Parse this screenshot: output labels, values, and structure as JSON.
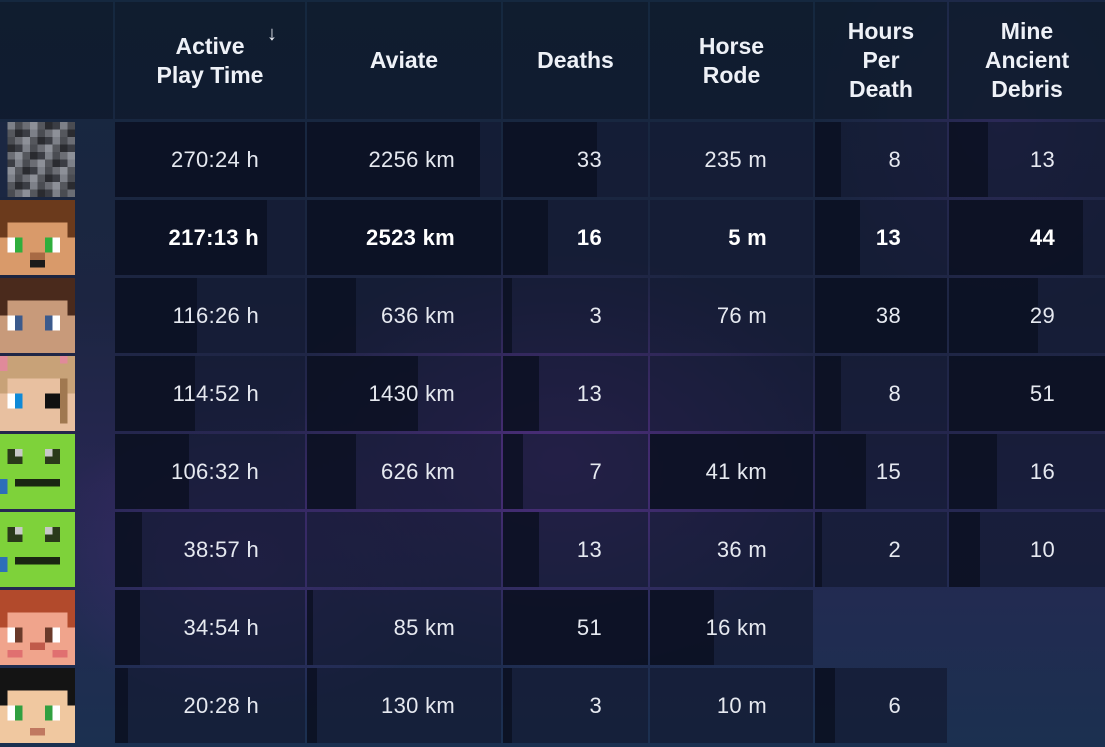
{
  "columns": [
    {
      "key": "play_time",
      "label": "Active\nPlay Time",
      "sorted": true,
      "sort_icon": "arrow-down-icon",
      "sort_glyph": "↓"
    },
    {
      "key": "aviate",
      "label": "Aviate"
    },
    {
      "key": "deaths",
      "label": "Deaths"
    },
    {
      "key": "horse",
      "label": "Horse\nRode"
    },
    {
      "key": "hpd",
      "label": "Hours\nPer\nDeath"
    },
    {
      "key": "debris",
      "label": "Mine\nAncient\nDebris"
    }
  ],
  "rows": [
    {
      "avatar": "player-head-gray-pixelated-icon",
      "bold": false,
      "play_time": "270:24 h",
      "aviate": "2256 km",
      "deaths": "33",
      "horse": "235 m",
      "hpd": "8",
      "debris": "13",
      "fill": {
        "play_time": 1.0,
        "aviate": 0.89,
        "deaths": 0.65,
        "horse": 0.0,
        "hpd": 0.2,
        "debris": 0.25
      }
    },
    {
      "avatar": "player-head-brown-hair-green-eyes-icon",
      "bold": true,
      "play_time": "217:13 h",
      "aviate": "2523 km",
      "deaths": "16",
      "horse": "5 m",
      "hpd": "13",
      "debris": "44",
      "fill": {
        "play_time": 0.8,
        "aviate": 1.0,
        "deaths": 0.31,
        "horse": 0.0,
        "hpd": 0.34,
        "debris": 0.86
      }
    },
    {
      "avatar": "player-head-dark-hair-blue-eyes-icon",
      "bold": false,
      "play_time": "116:26 h",
      "aviate": "636 km",
      "deaths": "3",
      "horse": "76 m",
      "hpd": "38",
      "debris": "29",
      "fill": {
        "play_time": 0.43,
        "aviate": 0.25,
        "deaths": 0.06,
        "horse": 0.0,
        "hpd": 1.0,
        "debris": 0.57
      }
    },
    {
      "avatar": "player-head-blonde-cat-ears-icon",
      "bold": false,
      "play_time": "114:52 h",
      "aviate": "1430 km",
      "deaths": "13",
      "horse": "",
      "hpd": "8",
      "debris": "51",
      "fill": {
        "play_time": 0.42,
        "aviate": 0.57,
        "deaths": 0.25,
        "horse": 0.0,
        "hpd": 0.2,
        "debris": 1.0
      }
    },
    {
      "avatar": "player-head-green-creeper-face-icon",
      "bold": false,
      "play_time": "106:32 h",
      "aviate": "626 km",
      "deaths": "7",
      "horse": "41 km",
      "hpd": "15",
      "debris": "16",
      "fill": {
        "play_time": 0.39,
        "aviate": 0.25,
        "deaths": 0.14,
        "horse": 1.0,
        "hpd": 0.39,
        "debris": 0.31
      }
    },
    {
      "avatar": "player-head-green-creeper-face-icon",
      "bold": false,
      "play_time": "38:57 h",
      "aviate": "",
      "deaths": "13",
      "horse": "36 m",
      "hpd": "2",
      "debris": "10",
      "fill": {
        "play_time": 0.14,
        "aviate": 0.0,
        "deaths": 0.25,
        "horse": 0.0,
        "hpd": 0.05,
        "debris": 0.2
      }
    },
    {
      "avatar": "player-head-ginger-freckles-icon",
      "bold": false,
      "play_time": "34:54 h",
      "aviate": "85 km",
      "deaths": "51",
      "horse": "16 km",
      "hpd": "",
      "debris": "",
      "fill": {
        "play_time": 0.13,
        "aviate": 0.03,
        "deaths": 1.0,
        "horse": 0.39,
        "hpd": 0.0,
        "debris": 0.0
      }
    },
    {
      "avatar": "player-head-black-hair-green-eyes-icon",
      "bold": false,
      "play_time": "20:28 h",
      "aviate": "130 km",
      "deaths": "3",
      "horse": "10 m",
      "hpd": "6",
      "debris": "",
      "fill": {
        "play_time": 0.07,
        "aviate": 0.05,
        "deaths": 0.06,
        "horse": 0.0,
        "hpd": 0.15,
        "debris": 0.0
      }
    }
  ],
  "colors": {
    "header_bg": "#101b2d",
    "cell_bg": "#141a32",
    "bar": "#0a1020",
    "text": "#e6e9f0"
  }
}
